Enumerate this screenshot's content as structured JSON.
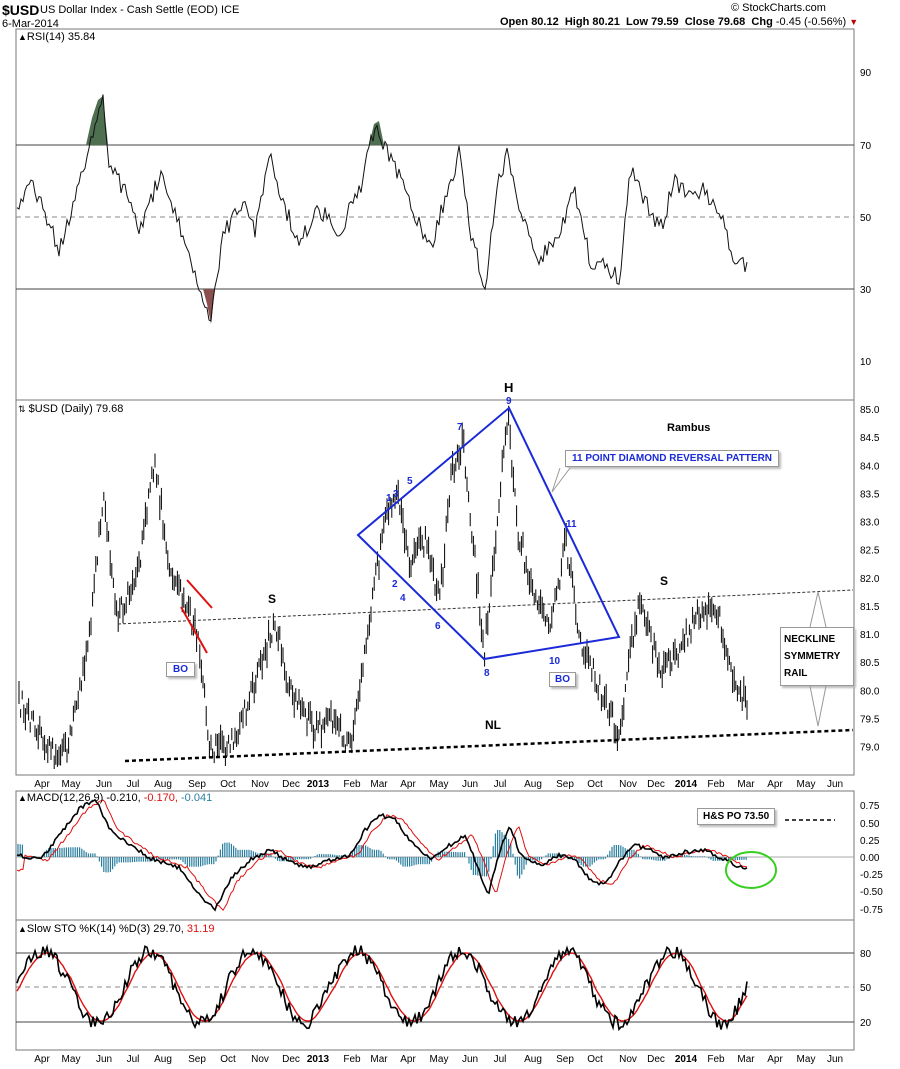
{
  "header": {
    "symbol": "$USD",
    "name": "US Dollar Index - Cash Settle (EOD)",
    "exchange": "ICE",
    "date": "6-Mar-2014",
    "watermark": "© StockCharts.com",
    "open_label": "Open",
    "open": "80.12",
    "high_label": "High",
    "high": "80.21",
    "low_label": "Low",
    "low": "79.59",
    "close_label": "Close",
    "close": "79.68",
    "chg_label": "Chg",
    "chg": "-0.45 (-0.56%)",
    "chg_icon": "down-triangle-icon"
  },
  "rsi_panel": {
    "label": "RSI(14) 35.84",
    "ticks": [
      "90",
      "70",
      "50",
      "30",
      "10"
    ]
  },
  "price_panel": {
    "label": "$USD (Daily) 79.68",
    "ticks": [
      "85.0",
      "84.5",
      "84.0",
      "83.5",
      "83.0",
      "82.5",
      "82.0",
      "81.5",
      "81.0",
      "80.5",
      "80.0",
      "79.5",
      "79.0"
    ],
    "annotations": {
      "rambus": "Rambus",
      "h": "H",
      "s_left": "S",
      "s_right": "S",
      "nl": "NL",
      "pattern": "11 POINT DIAMOND   REVERSAL PATTERN",
      "bo_left": "BO",
      "bo_right": "BO",
      "neckline_1": "NECKLINE",
      "neckline_2": "SYMMETRY",
      "neckline_3": "RAIL",
      "points": [
        "1",
        "2",
        "3",
        "4",
        "5",
        "6",
        "7",
        "8",
        "9",
        "10",
        "11"
      ]
    }
  },
  "macd_panel": {
    "label_main": "MACD(12,26,9) -0.210,",
    "label_signal": "-0.170,",
    "label_hist": "-0.041",
    "ticks": [
      "0.75",
      "0.50",
      "0.25",
      "0.00",
      "-0.25",
      "-0.50",
      "-0.75"
    ],
    "target": "H&S PO 73.50"
  },
  "sto_panel": {
    "label_main": "Slow STO %K(14) %D(3) 29.70,",
    "label_signal": "31.19",
    "ticks": [
      "80",
      "50",
      "20"
    ]
  },
  "x_axis": [
    "Apr",
    "May",
    "Jun",
    "Jul",
    "Aug",
    "Sep",
    "Oct",
    "Nov",
    "Dec",
    "2013",
    "Feb",
    "Mar",
    "Apr",
    "May",
    "Jun",
    "Jul",
    "Aug",
    "Sep",
    "Oct",
    "Nov",
    "Dec",
    "2014",
    "Feb",
    "Mar",
    "Apr",
    "May",
    "Jun"
  ],
  "colors": {
    "diamond": "#1a2ad8",
    "signal_line": "#e01010",
    "histogram": "#2a7fa0",
    "rsi_overbought_fill": "#4f7050",
    "rsi_oversold_fill": "#8a4f4f",
    "circle": "#38d020"
  },
  "chart_data": {
    "type": "line",
    "title": "$USD US Dollar Index - Cash Settle (EOD)",
    "x_range": [
      "Apr 2012",
      "Jun 2014"
    ],
    "last_date": "6-Mar-2014",
    "ohlc_last": {
      "open": 80.12,
      "high": 80.21,
      "low": 79.59,
      "close": 79.68,
      "change": -0.45,
      "change_pct": -0.56
    },
    "price_ylim": [
      78.6,
      85.1
    ],
    "price_path": [
      [
        "Apr 2012",
        79.6
      ],
      [
        "May 2012",
        79.2
      ],
      [
        "Jun 2012",
        82.6
      ],
      [
        "Jul 2012",
        81.9
      ],
      [
        "Jul 2012",
        83.8
      ],
      [
        "Aug 2012",
        83.2
      ],
      [
        "Sep 2012",
        80.6
      ],
      [
        "Sep 2012",
        79.1
      ],
      [
        "Oct 2012",
        79.9
      ],
      [
        "Nov 2012",
        81.2
      ],
      [
        "Dec 2012",
        80.2
      ],
      [
        "Dec 2012",
        79.6
      ],
      [
        "Jan 2013",
        79.5
      ],
      [
        "Feb 2013",
        79.3
      ],
      [
        "Mar 2013",
        82.6
      ],
      [
        "Apr 2013",
        83.2
      ],
      [
        "Apr 2013",
        81.9
      ],
      [
        "May 2013",
        84.2
      ],
      [
        "Jun 2013",
        80.6
      ],
      [
        "Jul 2013",
        84.9
      ],
      [
        "Aug 2013",
        82.0
      ],
      [
        "Aug 2013",
        81.2
      ],
      [
        "Sep 2013",
        82.8
      ],
      [
        "Sep 2013",
        80.8
      ],
      [
        "Oct 2013",
        79.1
      ],
      [
        "Nov 2013",
        81.5
      ],
      [
        "Dec 2013",
        80.3
      ],
      [
        "Jan 2014",
        81.4
      ],
      [
        "Feb 2014",
        80.8
      ],
      [
        "Mar 2014",
        79.68
      ]
    ],
    "rsi_last": 35.84,
    "rsi_levels": [
      70,
      50,
      30
    ],
    "macd": {
      "macd": -0.21,
      "signal": -0.17,
      "histogram": -0.041
    },
    "slow_sto": {
      "k": 29.7,
      "d": 31.19,
      "levels": [
        80,
        50,
        20
      ]
    },
    "price_objective": 73.5
  }
}
